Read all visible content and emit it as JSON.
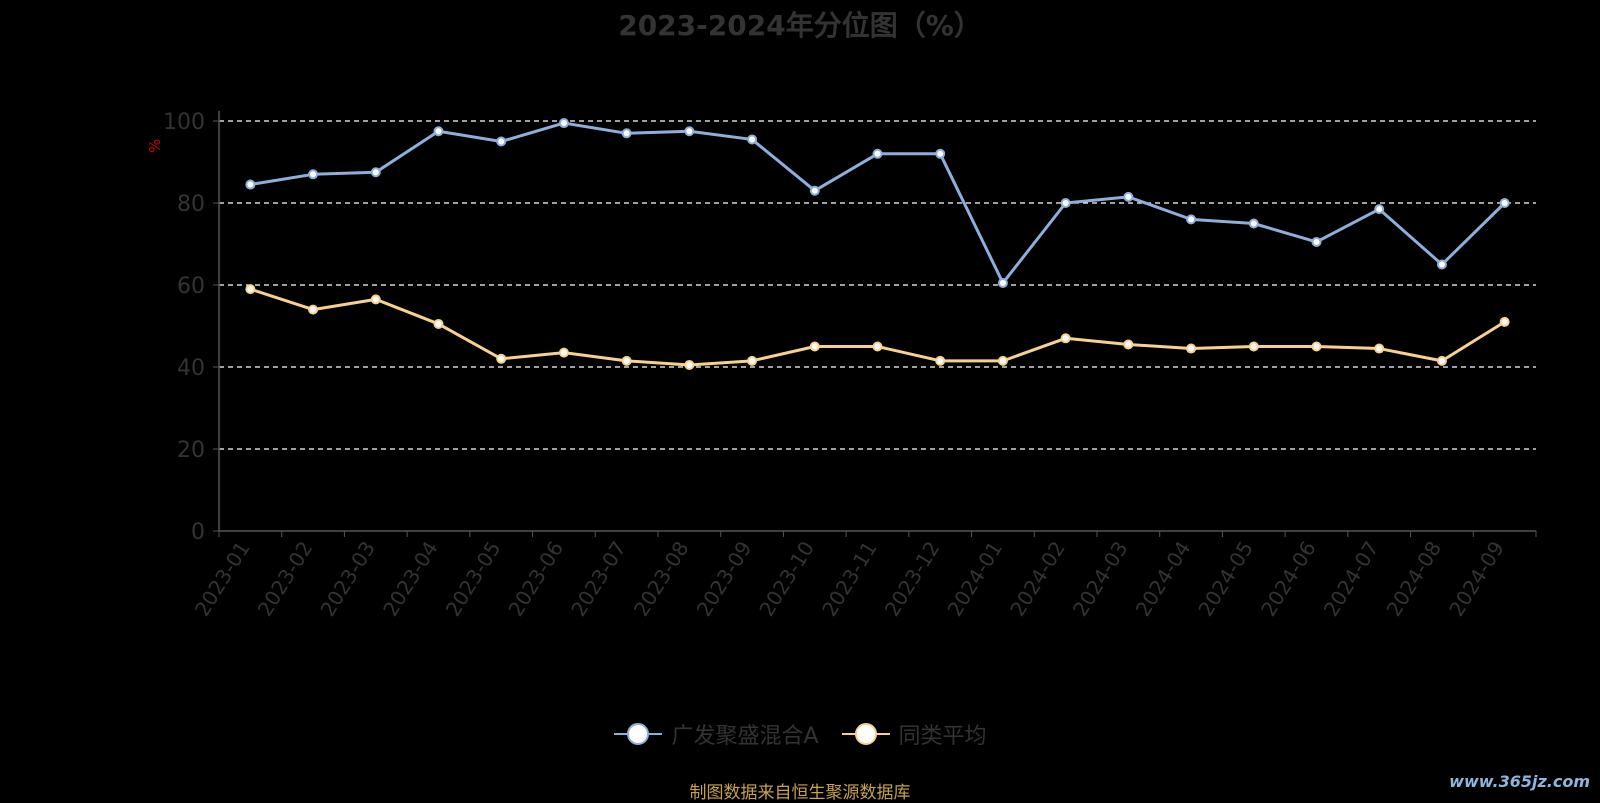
{
  "title": "2023-2024年分位图（%）",
  "yunit": "%",
  "source": "制图数据来自恒生聚源数据库",
  "watermark": "www.365jz.com",
  "colors": {
    "fund": "#8eaedc",
    "avg": "#f9d18e",
    "grid": "#ffffff",
    "axis": "#555555",
    "tick": "#333333"
  },
  "chart_data": {
    "type": "line",
    "title": "2023-2024年分位图（%）",
    "ylabel": "%",
    "ylim": [
      0,
      100
    ],
    "yticks": [
      0,
      20,
      40,
      60,
      80,
      100
    ],
    "grid": true,
    "legend_position": "bottom",
    "categories": [
      "2023-01",
      "2023-02",
      "2023-03",
      "2023-04",
      "2023-05",
      "2023-06",
      "2023-07",
      "2023-08",
      "2023-09",
      "2023-10",
      "2023-11",
      "2023-12",
      "2024-01",
      "2024-02",
      "2024-03",
      "2024-04",
      "2024-05",
      "2024-06",
      "2024-07",
      "2024-08",
      "2024-09"
    ],
    "series": [
      {
        "name": "广发聚盛混合A",
        "color": "#8eaedc",
        "values": [
          84.5,
          87,
          87.5,
          97.5,
          95,
          99.5,
          97,
          97.5,
          95.5,
          83,
          92,
          92,
          60.5,
          80,
          81.5,
          76,
          75,
          70.5,
          78.5,
          65,
          80
        ]
      },
      {
        "name": "同类平均",
        "color": "#f9d18e",
        "values": [
          59,
          54,
          56.5,
          50.5,
          42,
          43.5,
          41.5,
          40.5,
          41.5,
          45,
          45,
          41.5,
          41.5,
          47,
          45.5,
          44.5,
          45,
          45,
          44.5,
          41.5,
          51
        ]
      }
    ]
  }
}
